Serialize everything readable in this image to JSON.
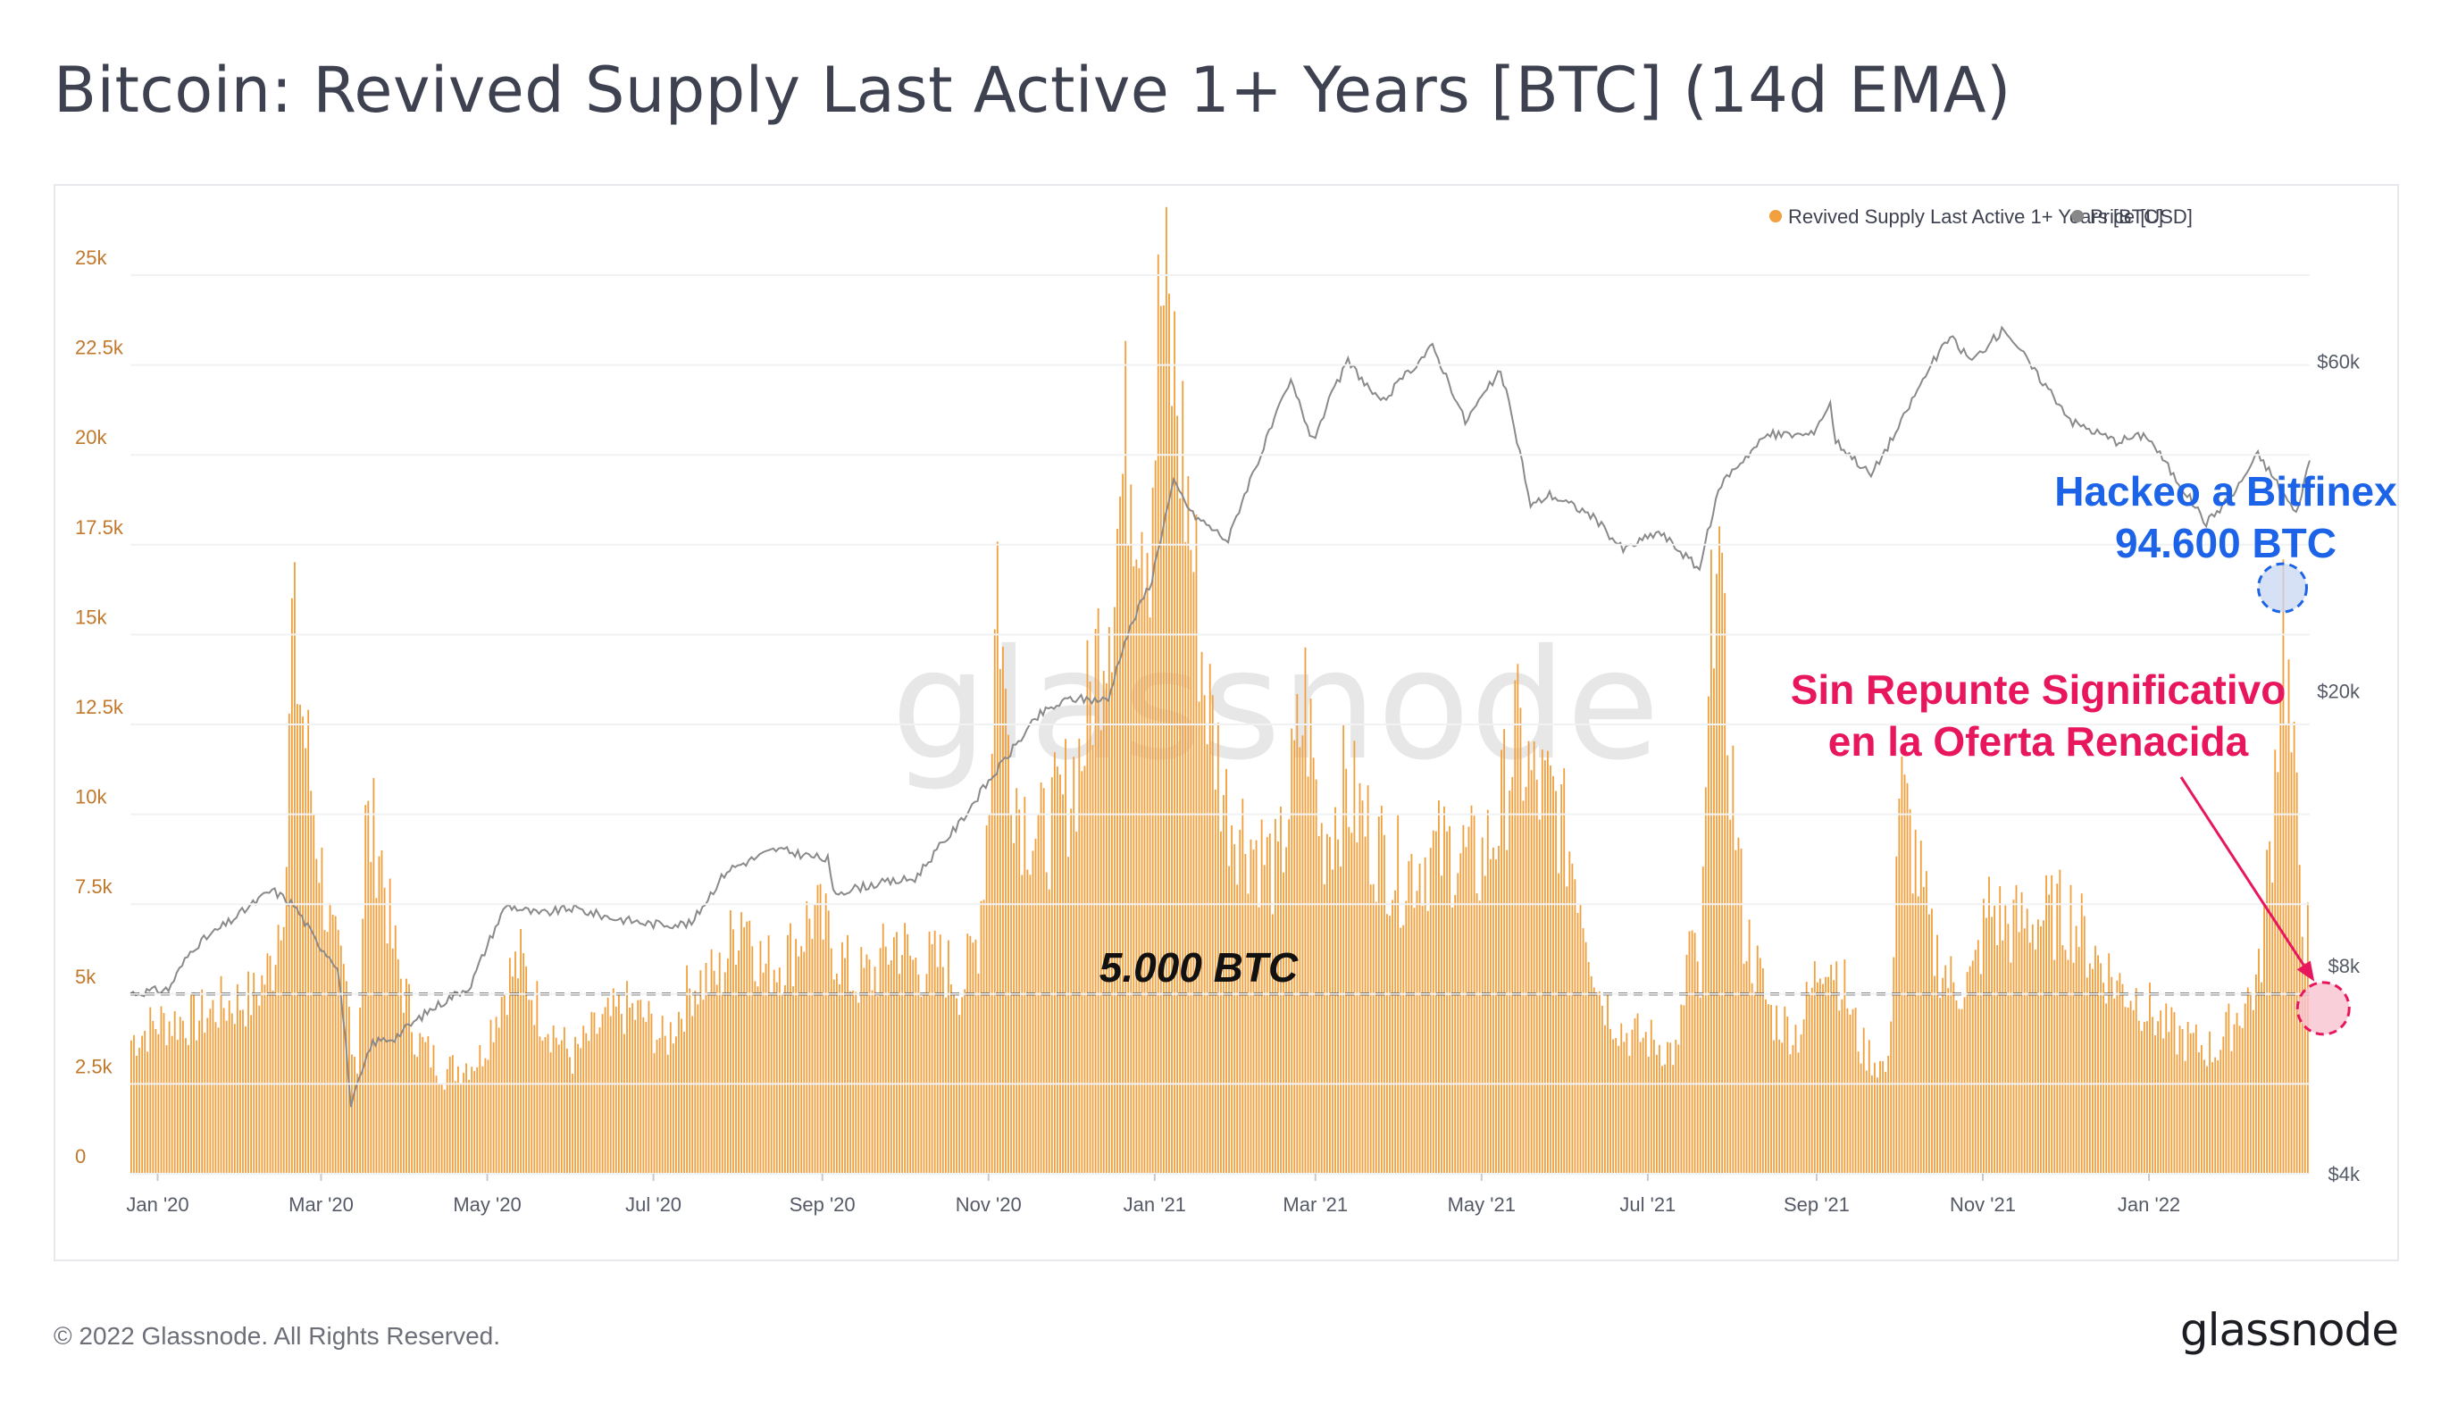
{
  "title": "Bitcoin: Revived Supply Last Active 1+ Years [BTC] (14d EMA)",
  "footer": {
    "copyright": "© 2022 Glassnode. All Rights Reserved.",
    "logo": "glassnode"
  },
  "watermark": "glassnode",
  "colors": {
    "bars": "#f2a03d",
    "price_line": "#8a8a8a",
    "blue_annotation": "#1d63e8",
    "pink_annotation": "#e8175d",
    "left_axis_text": "#c1782b"
  },
  "chart_data": {
    "type": "bar",
    "title": "Bitcoin: Revived Supply Last Active 1+ Years [BTC] (14d EMA)",
    "legend": [
      {
        "label": "Revived Supply Last Active 1+ Years [BTC]",
        "color": "#f2a03d"
      },
      {
        "label": "Price [USD]",
        "color": "#8a8a8a"
      }
    ],
    "legend_position": "top-right",
    "x_range": [
      "2019-12-22",
      "2022-03-01"
    ],
    "x_ticks": [
      "Jan '20",
      "Mar '20",
      "May '20",
      "Jul '20",
      "Sep '20",
      "Nov '20",
      "Jan '21",
      "Mar '21",
      "May '21",
      "Jul '21",
      "Sep '21",
      "Nov '21",
      "Jan '22"
    ],
    "y_left": {
      "label": "Revived Supply Last Active 1+ Years [BTC]",
      "ylim": [
        0,
        25000
      ],
      "ticks": [
        "0",
        "2.5k",
        "5k",
        "7.5k",
        "10k",
        "12.5k",
        "15k",
        "17.5k",
        "20k",
        "22.5k",
        "25k"
      ]
    },
    "y_right": {
      "label": "Price [USD]",
      "scale": "log",
      "ylim": [
        4000,
        80000
      ],
      "ticks": [
        "$4k",
        "$8k",
        "$20k",
        "$60k"
      ]
    },
    "series": [
      {
        "name": "Revived Supply Last Active 1+ Years [BTC]",
        "type": "bar",
        "anchors": [
          [
            "2019-12-22",
            3800
          ],
          [
            "2020-01-01",
            4300
          ],
          [
            "2020-01-15",
            4400
          ],
          [
            "2020-01-25",
            4800
          ],
          [
            "2020-02-05",
            5000
          ],
          [
            "2020-02-12",
            6000
          ],
          [
            "2020-02-17",
            9000
          ],
          [
            "2020-02-19",
            15500
          ],
          [
            "2020-02-23",
            13000
          ],
          [
            "2020-03-01",
            8500
          ],
          [
            "2020-03-05",
            6500
          ],
          [
            "2020-03-10",
            5200
          ],
          [
            "2020-03-14",
            3000
          ],
          [
            "2020-03-17",
            9800
          ],
          [
            "2020-03-22",
            9500
          ],
          [
            "2020-03-27",
            6500
          ],
          [
            "2020-04-05",
            3800
          ],
          [
            "2020-04-15",
            2900
          ],
          [
            "2020-04-28",
            3300
          ],
          [
            "2020-05-08",
            5500
          ],
          [
            "2020-05-13",
            6000
          ],
          [
            "2020-05-20",
            4600
          ],
          [
            "2020-06-01",
            3300
          ],
          [
            "2020-06-10",
            4100
          ],
          [
            "2020-06-20",
            4700
          ],
          [
            "2020-06-28",
            4400
          ],
          [
            "2020-07-05",
            3700
          ],
          [
            "2020-07-15",
            5400
          ],
          [
            "2020-07-25",
            5600
          ],
          [
            "2020-08-03",
            7700
          ],
          [
            "2020-08-10",
            5800
          ],
          [
            "2020-08-20",
            6300
          ],
          [
            "2020-08-28",
            7400
          ],
          [
            "2020-09-05",
            6500
          ],
          [
            "2020-09-12",
            5500
          ],
          [
            "2020-09-20",
            5700
          ],
          [
            "2020-09-28",
            6700
          ],
          [
            "2020-10-05",
            5900
          ],
          [
            "2020-10-15",
            6000
          ],
          [
            "2020-10-22",
            5300
          ],
          [
            "2020-10-28",
            6800
          ],
          [
            "2020-11-01",
            11000
          ],
          [
            "2020-11-04",
            17500
          ],
          [
            "2020-11-07",
            13000
          ],
          [
            "2020-11-12",
            10500
          ],
          [
            "2020-11-20",
            9500
          ],
          [
            "2020-11-28",
            10500
          ],
          [
            "2020-12-05",
            12000
          ],
          [
            "2020-12-10",
            14500
          ],
          [
            "2020-12-16",
            17000
          ],
          [
            "2020-12-22",
            21000
          ],
          [
            "2020-12-30",
            18500
          ],
          [
            "2021-01-03",
            25000
          ],
          [
            "2021-01-08",
            22500
          ],
          [
            "2021-01-13",
            19000
          ],
          [
            "2021-01-19",
            14000
          ],
          [
            "2021-01-27",
            10500
          ],
          [
            "2021-02-05",
            9500
          ],
          [
            "2021-02-15",
            8500
          ],
          [
            "2021-02-25",
            13500
          ],
          [
            "2021-03-03",
            9500
          ],
          [
            "2021-03-12",
            11000
          ],
          [
            "2021-03-22",
            9500
          ],
          [
            "2021-04-01",
            8500
          ],
          [
            "2021-04-10",
            9000
          ],
          [
            "2021-04-20",
            9200
          ],
          [
            "2021-04-30",
            8800
          ],
          [
            "2021-05-07",
            10000
          ],
          [
            "2021-05-13",
            12500
          ],
          [
            "2021-05-20",
            11000
          ],
          [
            "2021-05-28",
            10500
          ],
          [
            "2021-06-05",
            8500
          ],
          [
            "2021-06-13",
            5200
          ],
          [
            "2021-06-22",
            4000
          ],
          [
            "2021-07-02",
            3800
          ],
          [
            "2021-07-12",
            3400
          ],
          [
            "2021-07-16",
            6700
          ],
          [
            "2021-07-20",
            5200
          ],
          [
            "2021-07-26",
            20000
          ],
          [
            "2021-07-28",
            15000
          ],
          [
            "2021-08-05",
            7000
          ],
          [
            "2021-08-15",
            4500
          ],
          [
            "2021-08-25",
            4000
          ],
          [
            "2021-09-04",
            6500
          ],
          [
            "2021-09-10",
            5500
          ],
          [
            "2021-09-17",
            3600
          ],
          [
            "2021-09-27",
            2900
          ],
          [
            "2021-10-01",
            11000
          ],
          [
            "2021-10-07",
            9000
          ],
          [
            "2021-10-13",
            6500
          ],
          [
            "2021-10-21",
            5300
          ],
          [
            "2021-10-28",
            5500
          ],
          [
            "2021-11-03",
            7600
          ],
          [
            "2021-11-10",
            7000
          ],
          [
            "2021-11-17",
            7200
          ],
          [
            "2021-11-25",
            7300
          ],
          [
            "2021-12-03",
            7400
          ],
          [
            "2021-12-10",
            6400
          ],
          [
            "2021-12-20",
            5400
          ],
          [
            "2021-12-28",
            5000
          ],
          [
            "2022-01-07",
            4100
          ],
          [
            "2022-01-17",
            3700
          ],
          [
            "2022-01-25",
            3500
          ],
          [
            "2022-02-02",
            4500
          ],
          [
            "2022-02-10",
            5500
          ],
          [
            "2022-02-15",
            10000
          ],
          [
            "2022-02-19",
            16300
          ],
          [
            "2022-02-22",
            12000
          ],
          [
            "2022-02-27",
            7000
          ],
          [
            "2022-03-05",
            5000
          ],
          [
            "2022-03-09",
            4000
          ]
        ]
      },
      {
        "name": "Price [USD]",
        "type": "line",
        "anchors": [
          [
            "2019-12-22",
            7300
          ],
          [
            "2020-01-05",
            7400
          ],
          [
            "2020-01-14",
            8500
          ],
          [
            "2020-01-28",
            9300
          ],
          [
            "2020-02-12",
            10300
          ],
          [
            "2020-02-20",
            9800
          ],
          [
            "2020-02-28",
            8700
          ],
          [
            "2020-03-07",
            8000
          ],
          [
            "2020-03-12",
            5000
          ],
          [
            "2020-03-20",
            6200
          ],
          [
            "2020-03-28",
            6300
          ],
          [
            "2020-04-10",
            6900
          ],
          [
            "2020-04-25",
            7500
          ],
          [
            "2020-05-08",
            9800
          ],
          [
            "2020-05-20",
            9500
          ],
          [
            "2020-06-01",
            9700
          ],
          [
            "2020-06-15",
            9400
          ],
          [
            "2020-06-30",
            9200
          ],
          [
            "2020-07-15",
            9200
          ],
          [
            "2020-07-28",
            11000
          ],
          [
            "2020-08-15",
            11800
          ],
          [
            "2020-09-03",
            11400
          ],
          [
            "2020-09-05",
            10200
          ],
          [
            "2020-09-20",
            10500
          ],
          [
            "2020-10-05",
            10700
          ],
          [
            "2020-10-21",
            12800
          ],
          [
            "2020-11-05",
            15500
          ],
          [
            "2020-11-20",
            18500
          ],
          [
            "2020-12-01",
            19500
          ],
          [
            "2020-12-15",
            19400
          ],
          [
            "2020-12-20",
            23000
          ],
          [
            "2020-12-31",
            29000
          ],
          [
            "2021-01-08",
            40000
          ],
          [
            "2021-01-15",
            36000
          ],
          [
            "2021-01-28",
            33000
          ],
          [
            "2021-02-10",
            45000
          ],
          [
            "2021-02-20",
            56000
          ],
          [
            "2021-02-28",
            46000
          ],
          [
            "2021-03-13",
            60000
          ],
          [
            "2021-03-25",
            52000
          ],
          [
            "2021-04-13",
            63000
          ],
          [
            "2021-04-25",
            49000
          ],
          [
            "2021-05-08",
            58000
          ],
          [
            "2021-05-12",
            50000
          ],
          [
            "2021-05-19",
            37000
          ],
          [
            "2021-05-26",
            38500
          ],
          [
            "2021-06-10",
            36000
          ],
          [
            "2021-06-22",
            32000
          ],
          [
            "2021-07-05",
            34000
          ],
          [
            "2021-07-20",
            30000
          ],
          [
            "2021-07-28",
            40000
          ],
          [
            "2021-08-14",
            47000
          ],
          [
            "2021-08-30",
            47000
          ],
          [
            "2021-09-06",
            52000
          ],
          [
            "2021-09-08",
            46000
          ],
          [
            "2021-09-21",
            41000
          ],
          [
            "2021-10-01",
            48000
          ],
          [
            "2021-10-15",
            61000
          ],
          [
            "2021-10-20",
            65000
          ],
          [
            "2021-10-28",
            60000
          ],
          [
            "2021-11-09",
            67000
          ],
          [
            "2021-11-20",
            58000
          ],
          [
            "2021-12-04",
            49000
          ],
          [
            "2021-12-20",
            46000
          ],
          [
            "2021-12-31",
            47000
          ],
          [
            "2022-01-10",
            41000
          ],
          [
            "2022-01-22",
            35000
          ],
          [
            "2022-02-01",
            38500
          ],
          [
            "2022-02-10",
            44000
          ],
          [
            "2022-02-24",
            36000
          ],
          [
            "2022-03-01",
            43000
          ],
          [
            "2022-03-08",
            39000
          ],
          [
            "2022-03-10",
            39000
          ]
        ]
      }
    ],
    "annotations": {
      "threshold_label": "5.000 BTC",
      "threshold_value": 5000,
      "bitfinex_line1": "Hackeo a Bitfinex",
      "bitfinex_line2": "94.600 BTC",
      "bitfinex_date": "2022-02-19",
      "bitfinex_value": 16300,
      "norebound_line1": "Sin Repunte Significativo",
      "norebound_line2": "en la Oferta Renacida",
      "norebound_date": "2022-03-06",
      "norebound_value": 4600
    }
  }
}
